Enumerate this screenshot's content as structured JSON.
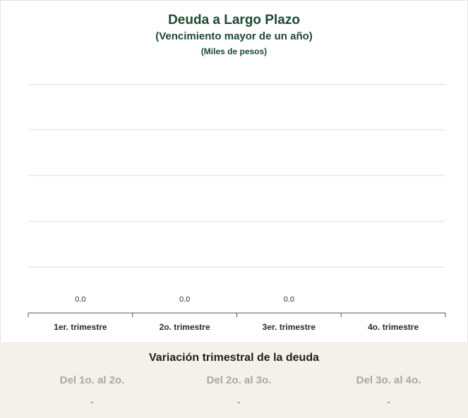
{
  "chart_data": {
    "type": "bar",
    "title": "Deuda a Largo Plazo",
    "subtitle": "(Vencimiento mayor de un año)",
    "unit_label": "(Miles de pesos)",
    "categories": [
      "1er. trimestre",
      "2o. trimestre",
      "3er. trimestre",
      "4o. trimestre"
    ],
    "values": [
      0.0,
      0.0,
      0.0,
      null
    ],
    "value_labels": [
      "0.0",
      "0.0",
      "0.0",
      ""
    ],
    "grid": true,
    "ylim": [
      0,
      1
    ]
  },
  "variation": {
    "title": "Variación trimestral de la deuda",
    "items": [
      {
        "label": "Del 1o. al 2o.",
        "value": "-"
      },
      {
        "label": "Del 2o. al 3o.",
        "value": "-"
      },
      {
        "label": "Del 3o. al 4o.",
        "value": "-"
      }
    ]
  },
  "colors": {
    "title": "#1a4a30",
    "grid": "#dddddd",
    "axis": "#555555",
    "variation_bg": "#f3f1ea",
    "variation_value": "#f07f3c"
  }
}
